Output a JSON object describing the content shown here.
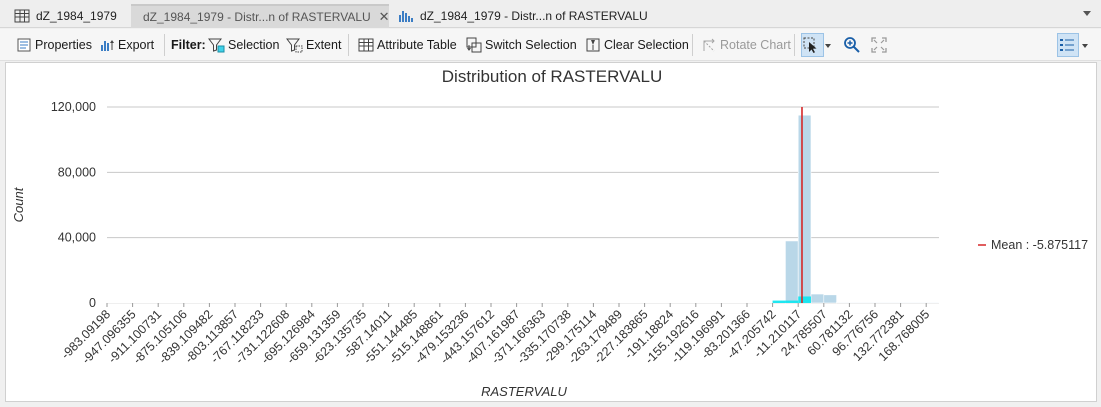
{
  "tabs": [
    {
      "label": "dZ_1984_1979",
      "icon": "table-icon",
      "active": false,
      "closable": false
    },
    {
      "label": "dZ_1984_1979 - Distr...n of RASTERVALU",
      "icon": "histogram-icon",
      "active": true,
      "closable": true
    },
    {
      "label": "dZ_1984_1979 - Distr...n of RASTERVALU",
      "icon": "histogram-icon",
      "active": false,
      "closable": false
    }
  ],
  "toolbar": {
    "properties": "Properties",
    "export": "Export",
    "filter_label": "Filter:",
    "selection": "Selection",
    "extent": "Extent",
    "attribute_table": "Attribute Table",
    "switch_selection": "Switch Selection",
    "clear_selection": "Clear Selection",
    "rotate_chart": "Rotate Chart"
  },
  "colors": {
    "bar_fill": "#b9d7e8",
    "selected_fill": "#00e6f0",
    "mean_line": "#d62728",
    "gridline": "#c8c8c8",
    "accent": "#1a73c8"
  },
  "chart_data": {
    "type": "bar",
    "title": "Distribution of RASTERVALU",
    "xlabel": "RASTERVALU",
    "ylabel": "Count",
    "ylim": [
      0,
      120000
    ],
    "yticks": [
      0,
      40000,
      80000,
      120000
    ],
    "ytick_labels": [
      "0",
      "40,000",
      "80,000",
      "120,000"
    ],
    "xlim": [
      -983.09198,
      186.768005
    ],
    "xtick_values": [
      -983.09198,
      -947.096355,
      -911.100731,
      -875.105106,
      -839.109482,
      -803.113857,
      -767.118233,
      -731.122608,
      -695.126984,
      -659.131359,
      -623.135735,
      -587.14011,
      -551.144485,
      -515.148861,
      -479.153236,
      -443.157612,
      -407.161987,
      -371.166363,
      -335.170738,
      -299.175114,
      -263.179489,
      -227.183865,
      -191.18824,
      -155.192616,
      -119.196991,
      -83.201366,
      -47.205742,
      -11.210117,
      24.785507,
      60.781132,
      96.776756,
      132.772381,
      168.768005
    ],
    "xtick_labels": [
      "-983.09198",
      "-947.096355",
      "-911.100731",
      "-875.105106",
      "-839.109482",
      "-803.113857",
      "-767.118233",
      "-731.122608",
      "-695.126984",
      "-659.131359",
      "-623.135735",
      "-587.14011",
      "-551.144485",
      "-515.148861",
      "-479.153236",
      "-443.157612",
      "-407.161987",
      "-371.166363",
      "-335.170738",
      "-299.175114",
      "-263.179489",
      "-227.183865",
      "-191.18824",
      "-155.192616",
      "-119.196991",
      "-83.201366",
      "-47.205742",
      "-11.210117",
      "24.785507",
      "60.781132",
      "96.776756",
      "132.772381",
      "168.768005"
    ],
    "bins": [
      {
        "x0": -983.09198,
        "x1": -47.205742,
        "count": 300
      },
      {
        "x0": -47.205742,
        "x1": -29.20793,
        "count": 1200
      },
      {
        "x0": -29.20793,
        "x1": -11.210117,
        "count": 38000
      },
      {
        "x0": -11.210117,
        "x1": 6.787695,
        "count": 115000
      },
      {
        "x0": 6.787695,
        "x1": 24.785507,
        "count": 5500
      },
      {
        "x0": 24.785507,
        "x1": 42.78332,
        "count": 5000
      },
      {
        "x0": 42.78332,
        "x1": 186.768005,
        "count": 400
      }
    ],
    "selected_bins": [
      {
        "x0": -47.205742,
        "x1": -11.210117,
        "count": 1500
      },
      {
        "x0": -11.210117,
        "x1": 6.787695,
        "count": 4000
      }
    ],
    "mean": -5.875117,
    "legend": {
      "label": "Mean : -5.875117",
      "position": "right"
    },
    "grid": true
  }
}
